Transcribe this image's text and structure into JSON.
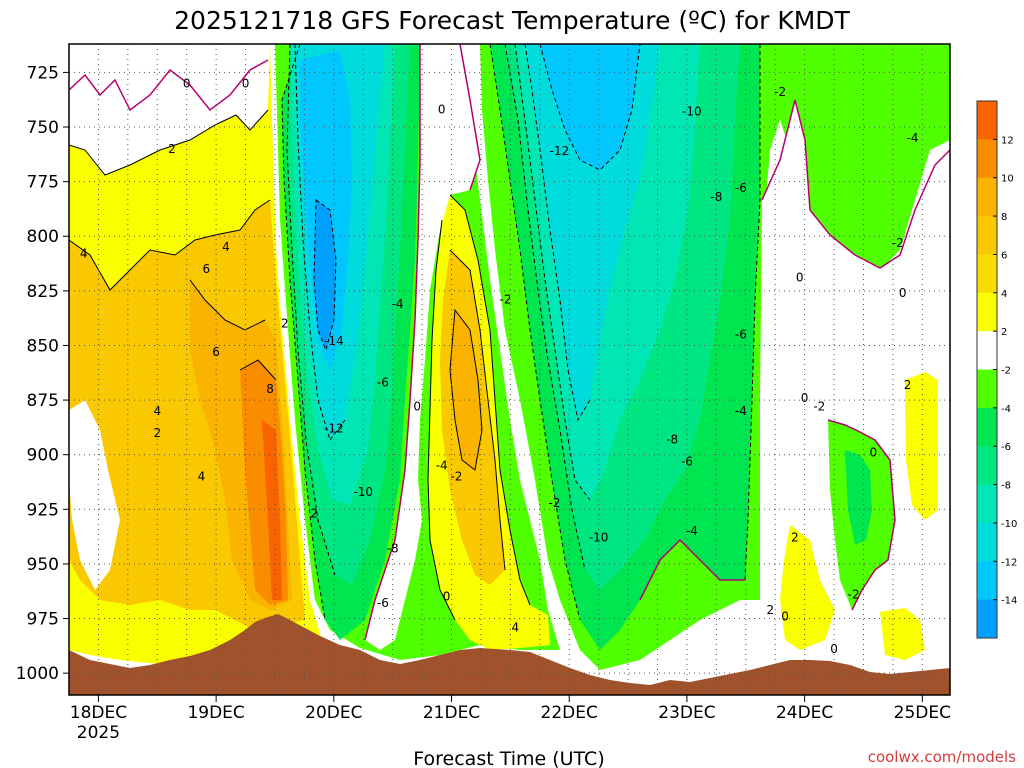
{
  "chart_data": {
    "type": "heatmap",
    "title": "2025121718 GFS Forecast Temperature (ºC) for KMDT",
    "xlabel": "Forecast Time (UTC)",
    "ylabel": "",
    "y_scale": "pressure (hPa), inverted",
    "x_ticks": [
      "18DEC",
      "19DEC",
      "20DEC",
      "21DEC",
      "22DEC",
      "23DEC",
      "24DEC",
      "25DEC"
    ],
    "x_tick_sublabel": "2025",
    "y_ticks": [
      725,
      750,
      775,
      800,
      825,
      850,
      875,
      900,
      925,
      950,
      975,
      1000
    ],
    "ylim": [
      1010,
      712
    ],
    "colorbar": {
      "ticks": [
        12,
        10,
        8,
        6,
        4,
        2,
        -2,
        -4,
        -6,
        -8,
        -10,
        -12,
        -14
      ],
      "colors": [
        "#fa6400",
        "#fa8c00",
        "#fab400",
        "#fac800",
        "#fadc00",
        "#faff00",
        "#ffffff",
        "#50ff00",
        "#00e650",
        "#00e682",
        "#00e6b4",
        "#00dcdc",
        "#00c8ff",
        "#00a0ff"
      ]
    },
    "contour_labels": [
      {
        "text": "0",
        "x": "18DEC 18Z",
        "p": 730
      },
      {
        "text": "0",
        "x": "19DEC 06Z",
        "p": 730
      },
      {
        "text": "2",
        "x": "18DEC 15Z",
        "p": 760
      },
      {
        "text": "4",
        "x": "17DEC 21Z",
        "p": 808
      },
      {
        "text": "6",
        "x": "18DEC 22Z",
        "p": 815
      },
      {
        "text": "4",
        "x": "19DEC 02Z",
        "p": 805
      },
      {
        "text": "6",
        "x": "19DEC 00Z",
        "p": 853
      },
      {
        "text": "8",
        "x": "19DEC 11Z",
        "p": 870
      },
      {
        "text": "4",
        "x": "18DEC 12Z",
        "p": 880
      },
      {
        "text": "2",
        "x": "18DEC 12Z",
        "p": 890
      },
      {
        "text": "4",
        "x": "18DEC 21Z",
        "p": 910
      },
      {
        "text": "2",
        "x": "19DEC 14Z",
        "p": 840
      },
      {
        "text": "2",
        "x": "19DEC 20Z",
        "p": 927
      },
      {
        "text": "-14",
        "x": "19DEC 24Z",
        "p": 848
      },
      {
        "text": "-12",
        "x": "20DEC 00Z",
        "p": 888
      },
      {
        "text": "-10",
        "x": "20DEC 06Z",
        "p": 917
      },
      {
        "text": "-8",
        "x": "20DEC 12Z",
        "p": 943
      },
      {
        "text": "-6",
        "x": "20DEC 10Z",
        "p": 968
      },
      {
        "text": "-6",
        "x": "20DEC 10Z",
        "p": 867
      },
      {
        "text": "-4",
        "x": "20DEC 13Z",
        "p": 831
      },
      {
        "text": "0",
        "x": "20DEC 17Z",
        "p": 878
      },
      {
        "text": "-4",
        "x": "20DEC 22Z",
        "p": 905
      },
      {
        "text": "-2",
        "x": "21DEC 01Z",
        "p": 910
      },
      {
        "text": "0",
        "x": "20DEC 23Z",
        "p": 965
      },
      {
        "text": "0",
        "x": "20DEC 22Z",
        "p": 742
      },
      {
        "text": "-2",
        "x": "21DEC 11Z",
        "p": 829
      },
      {
        "text": "4",
        "x": "21DEC 13Z",
        "p": 979
      },
      {
        "text": "-2",
        "x": "21DEC 21Z",
        "p": 922
      },
      {
        "text": "-12",
        "x": "21DEC 22Z",
        "p": 761
      },
      {
        "text": "-10",
        "x": "22DEC 06Z",
        "p": 938
      },
      {
        "text": "-8",
        "x": "22DEC 21Z",
        "p": 893
      },
      {
        "text": "-6",
        "x": "23DEC 00Z",
        "p": 903
      },
      {
        "text": "-4",
        "x": "23DEC 01Z",
        "p": 935
      },
      {
        "text": "-10",
        "x": "23DEC 01Z",
        "p": 743
      },
      {
        "text": "-8",
        "x": "23DEC 06Z",
        "p": 782
      },
      {
        "text": "-6",
        "x": "23DEC 11Z",
        "p": 778
      },
      {
        "text": "-6",
        "x": "23DEC 11Z",
        "p": 845
      },
      {
        "text": "-4",
        "x": "23DEC 11Z",
        "p": 880
      },
      {
        "text": "-2",
        "x": "23DEC 19Z",
        "p": 734
      },
      {
        "text": "0",
        "x": "23DEC 23Z",
        "p": 819
      },
      {
        "text": "0",
        "x": "24DEC 00Z",
        "p": 874
      },
      {
        "text": "-2",
        "x": "24DEC 03Z",
        "p": 878
      },
      {
        "text": "2",
        "x": "23DEC 22Z",
        "p": 938
      },
      {
        "text": "2",
        "x": "23DEC 17Z",
        "p": 971
      },
      {
        "text": "0",
        "x": "23DEC 20Z",
        "p": 974
      },
      {
        "text": "0",
        "x": "24DEC 06Z",
        "p": 989
      },
      {
        "text": "-2",
        "x": "24DEC 10Z",
        "p": 964
      },
      {
        "text": "0",
        "x": "24DEC 14Z",
        "p": 899
      },
      {
        "text": "0",
        "x": "24DEC 20Z",
        "p": 826
      },
      {
        "text": "-2",
        "x": "24DEC 19Z",
        "p": 803
      },
      {
        "text": "-4",
        "x": "24DEC 22Z",
        "p": 755
      },
      {
        "text": "2",
        "x": "24DEC 21Z",
        "p": 868
      }
    ]
  },
  "credit": "coolwx.com/models"
}
